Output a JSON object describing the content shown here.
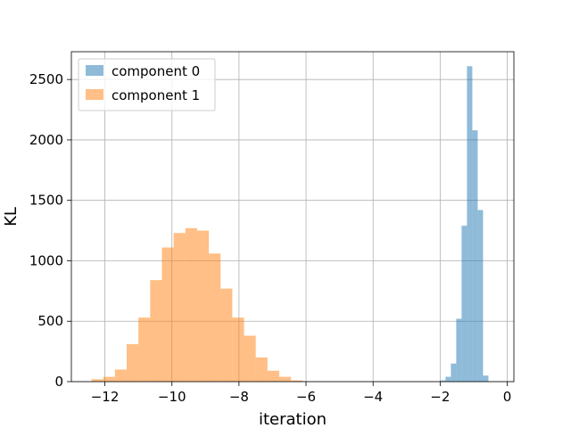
{
  "chart_data": {
    "type": "histogram",
    "title": "",
    "xlabel": "iteration",
    "ylabel": "KL",
    "xlim": [
      -13.0,
      0.2
    ],
    "ylim": [
      0,
      2730
    ],
    "xticks": [
      -12,
      -10,
      -8,
      -6,
      -4,
      -2,
      0
    ],
    "xtick_labels": [
      "−12",
      "−10",
      "−8",
      "−6",
      "−4",
      "−2",
      "0"
    ],
    "yticks": [
      0,
      500,
      1000,
      1500,
      2000,
      2500
    ],
    "ytick_labels": [
      "0",
      "500",
      "1000",
      "1500",
      "2000",
      "2500"
    ],
    "grid": true,
    "legend_position": "upper-left",
    "series": [
      {
        "name": "component 0",
        "color": "#1f77b4",
        "alpha": 0.5,
        "bin_edges": [
          -2.0,
          -1.84,
          -1.68,
          -1.52,
          -1.36,
          -1.2,
          -1.04,
          -0.88,
          -0.72,
          -0.56
        ],
        "counts": [
          10,
          40,
          150,
          520,
          1290,
          2610,
          2080,
          1420,
          50
        ]
      },
      {
        "name": "component 1",
        "color": "#ff7f0e",
        "alpha": 0.5,
        "bin_edges": [
          -12.4,
          -12.05,
          -11.7,
          -11.35,
          -11.0,
          -10.65,
          -10.3,
          -9.95,
          -9.6,
          -9.25,
          -8.9,
          -8.55,
          -8.2,
          -7.85,
          -7.5,
          -7.15,
          -6.8,
          -6.45,
          -6.1
        ],
        "counts": [
          20,
          40,
          100,
          310,
          530,
          840,
          1110,
          1230,
          1270,
          1250,
          1060,
          770,
          530,
          380,
          200,
          90,
          40,
          10
        ]
      }
    ]
  }
}
